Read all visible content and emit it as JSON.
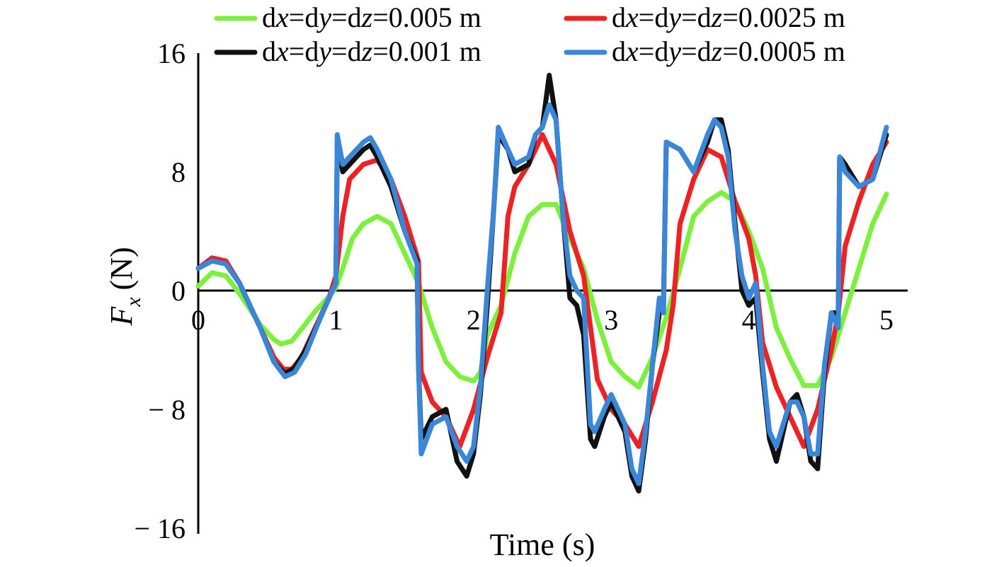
{
  "chart_data": {
    "type": "line",
    "xlabel": "Time (s)",
    "ylabel": {
      "symbol": "F",
      "subscript": "x",
      "unit": "(N)"
    },
    "xlim": [
      0,
      5
    ],
    "ylim": [
      -16,
      16
    ],
    "x_ticks": [
      "0",
      "1",
      "2",
      "3",
      "4",
      "5"
    ],
    "y_ticks": [
      "16",
      "8",
      "0",
      "− 8",
      "− 16"
    ],
    "legend_position": "top",
    "series": [
      {
        "name_parts": [
          "d",
          "x",
          "=d",
          "y",
          "=d",
          "z",
          "=0.005 m"
        ],
        "color": "#7cf03c",
        "x": [
          0,
          0.1,
          0.2,
          0.3,
          0.45,
          0.55,
          0.6,
          0.68,
          0.75,
          0.85,
          0.95,
          1.0,
          1.05,
          1.12,
          1.2,
          1.3,
          1.4,
          1.5,
          1.6,
          1.7,
          1.8,
          1.9,
          2.0,
          2.05,
          2.1,
          2.2,
          2.3,
          2.4,
          2.5,
          2.6,
          2.7,
          2.8,
          2.9,
          3.0,
          3.1,
          3.2,
          3.3,
          3.4,
          3.5,
          3.6,
          3.7,
          3.8,
          3.9,
          4.0,
          4.1,
          4.2,
          4.3,
          4.4,
          4.5,
          4.6,
          4.7,
          4.8,
          4.9,
          5.0
        ],
        "y": [
          0.3,
          1.2,
          1.0,
          -0.2,
          -2.3,
          -3.3,
          -3.6,
          -3.4,
          -2.6,
          -1.4,
          -0.4,
          0.2,
          1.5,
          3.5,
          4.5,
          5.0,
          4.5,
          2.5,
          0.5,
          -2.5,
          -4.8,
          -5.8,
          -6.1,
          -5.5,
          -3.0,
          -1.0,
          2.5,
          5.0,
          5.8,
          5.8,
          3.5,
          1.5,
          -2.0,
          -4.8,
          -5.8,
          -6.5,
          -4.5,
          -1.8,
          1.5,
          5.0,
          6.0,
          6.6,
          6.0,
          4.0,
          1.5,
          -2.5,
          -4.6,
          -6.4,
          -6.4,
          -4.5,
          -1.5,
          1.5,
          4.5,
          6.5
        ]
      },
      {
        "name_parts": [
          "d",
          "x",
          "=d",
          "y",
          "=d",
          "z",
          "=0.0025 m"
        ],
        "color": "#ee2222",
        "x": [
          0,
          0.1,
          0.2,
          0.3,
          0.45,
          0.55,
          0.62,
          0.68,
          0.75,
          0.85,
          0.95,
          1.0,
          1.05,
          1.1,
          1.2,
          1.3,
          1.4,
          1.5,
          1.6,
          1.62,
          1.7,
          1.8,
          1.9,
          2.0,
          2.1,
          2.2,
          2.25,
          2.3,
          2.4,
          2.5,
          2.6,
          2.7,
          2.8,
          2.9,
          3.0,
          3.1,
          3.2,
          3.3,
          3.4,
          3.45,
          3.5,
          3.6,
          3.7,
          3.8,
          3.9,
          4.0,
          4.05,
          4.1,
          4.2,
          4.3,
          4.4,
          4.5,
          4.6,
          4.65,
          4.7,
          4.8,
          4.9,
          5.0
        ],
        "y": [
          1.5,
          2.2,
          2.0,
          0.5,
          -2.5,
          -4.5,
          -5.3,
          -5.3,
          -4.5,
          -2.5,
          -0.5,
          1.0,
          5.0,
          7.5,
          8.5,
          8.8,
          7.5,
          5.0,
          2.0,
          -5.5,
          -7.5,
          -8.5,
          -10.5,
          -8.0,
          -4.5,
          -1.5,
          5.0,
          7.0,
          8.5,
          10.5,
          8.5,
          4.0,
          1.0,
          -6.0,
          -8.0,
          -9.0,
          -10.5,
          -7.5,
          -4.0,
          -1.0,
          4.5,
          7.5,
          9.5,
          9.0,
          6.0,
          3.5,
          1.0,
          -3.5,
          -6.5,
          -8.5,
          -10.5,
          -8.0,
          -4.0,
          -1.5,
          3.0,
          6.0,
          8.5,
          10.0
        ]
      },
      {
        "name_parts": [
          "d",
          "x",
          "=d",
          "y",
          "=d",
          "z",
          "=0.001 m"
        ],
        "color": "#111111",
        "x": [
          0,
          0.1,
          0.2,
          0.3,
          0.45,
          0.55,
          0.63,
          0.7,
          0.78,
          0.88,
          0.95,
          1.0,
          1.01,
          1.05,
          1.1,
          1.2,
          1.25,
          1.3,
          1.4,
          1.5,
          1.59,
          1.6,
          1.62,
          1.7,
          1.8,
          1.88,
          1.95,
          2.0,
          2.05,
          2.1,
          2.15,
          2.18,
          2.25,
          2.3,
          2.4,
          2.45,
          2.5,
          2.55,
          2.6,
          2.65,
          2.7,
          2.75,
          2.8,
          2.85,
          2.88,
          2.95,
          3.0,
          3.1,
          3.15,
          3.2,
          3.25,
          3.3,
          3.35,
          3.38,
          3.4,
          3.5,
          3.6,
          3.7,
          3.75,
          3.8,
          3.85,
          3.9,
          3.95,
          4.0,
          4.05,
          4.1,
          4.15,
          4.2,
          4.3,
          4.35,
          4.4,
          4.45,
          4.5,
          4.55,
          4.6,
          4.65,
          4.66,
          4.7,
          4.8,
          4.9,
          5.0
        ],
        "y": [
          1.5,
          2.0,
          1.8,
          0.5,
          -2.5,
          -4.8,
          -5.6,
          -5.2,
          -4.0,
          -2.0,
          -0.5,
          0.5,
          10.0,
          8.0,
          8.5,
          9.5,
          9.8,
          9.0,
          7.0,
          4.0,
          2.0,
          -5.0,
          -10.0,
          -8.5,
          -8.0,
          -11.5,
          -12.5,
          -11.0,
          -7.0,
          -1.0,
          6.0,
          10.5,
          9.5,
          8.0,
          8.5,
          10.5,
          11.0,
          14.5,
          11.5,
          5.0,
          -0.5,
          -1.0,
          -3.0,
          -10.0,
          -10.5,
          -8.5,
          -7.5,
          -9.5,
          -12.5,
          -13.5,
          -10.0,
          -5.0,
          -1.5,
          -1.0,
          10.0,
          9.5,
          8.0,
          10.0,
          11.5,
          11.5,
          9.5,
          4.5,
          0.0,
          -1.0,
          -0.5,
          -5.5,
          -10.0,
          -11.5,
          -7.5,
          -7.0,
          -8.5,
          -11.5,
          -12.0,
          -5.5,
          -1.5,
          -1.5,
          9.0,
          8.5,
          7.0,
          7.5,
          10.5
        ]
      },
      {
        "name_parts": [
          "d",
          "x",
          "=d",
          "y",
          "=d",
          "z",
          "=0.0005 m"
        ],
        "color": "#3a86d8",
        "x": [
          0,
          0.1,
          0.2,
          0.3,
          0.45,
          0.55,
          0.63,
          0.7,
          0.78,
          0.88,
          0.95,
          1.0,
          1.01,
          1.05,
          1.1,
          1.2,
          1.25,
          1.3,
          1.4,
          1.5,
          1.59,
          1.6,
          1.62,
          1.7,
          1.8,
          1.88,
          1.95,
          2.0,
          2.05,
          2.1,
          2.15,
          2.18,
          2.25,
          2.3,
          2.4,
          2.45,
          2.5,
          2.55,
          2.6,
          2.65,
          2.7,
          2.75,
          2.8,
          2.85,
          2.88,
          2.95,
          3.0,
          3.1,
          3.15,
          3.2,
          3.25,
          3.3,
          3.35,
          3.38,
          3.4,
          3.5,
          3.6,
          3.7,
          3.75,
          3.8,
          3.85,
          3.9,
          3.95,
          4.0,
          4.05,
          4.1,
          4.15,
          4.2,
          4.3,
          4.35,
          4.4,
          4.45,
          4.5,
          4.55,
          4.6,
          4.65,
          4.66,
          4.7,
          4.8,
          4.9,
          5.0
        ],
        "y": [
          1.5,
          2.0,
          1.8,
          0.5,
          -2.5,
          -4.8,
          -5.8,
          -5.5,
          -4.3,
          -2.0,
          -0.5,
          0.5,
          10.5,
          8.5,
          9.0,
          10.0,
          10.3,
          9.5,
          7.5,
          4.0,
          1.8,
          -5.0,
          -11.0,
          -9.0,
          -8.5,
          -10.5,
          -11.5,
          -10.5,
          -6.5,
          0.0,
          6.0,
          11.0,
          9.5,
          8.5,
          9.0,
          10.5,
          11.0,
          12.5,
          11.5,
          5.0,
          1.0,
          0.0,
          -0.5,
          -9.0,
          -9.5,
          -8.0,
          -7.0,
          -9.0,
          -12.0,
          -13.0,
          -9.5,
          -5.0,
          -0.5,
          -1.5,
          10.0,
          9.5,
          8.0,
          10.5,
          11.5,
          11.0,
          9.0,
          4.0,
          1.0,
          -0.5,
          0.5,
          -5.0,
          -9.5,
          -10.5,
          -7.5,
          -7.5,
          -8.5,
          -11.0,
          -11.0,
          -5.0,
          -1.5,
          -2.5,
          9.0,
          8.0,
          7.0,
          7.5,
          11.0
        ]
      }
    ]
  }
}
